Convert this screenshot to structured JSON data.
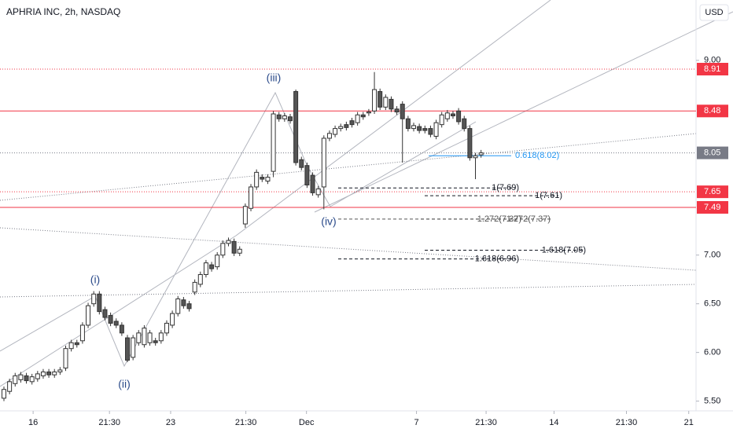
{
  "chart_data": {
    "type": "candlestick",
    "title": "APHRIA INC, 2h, NASDAQ",
    "currency": "USD",
    "x": [
      0,
      1,
      2,
      3,
      4,
      5,
      6,
      7,
      8,
      9,
      10,
      11,
      12,
      13,
      14,
      15,
      16,
      17,
      18,
      19,
      20,
      21,
      22,
      23,
      24,
      25,
      26,
      27,
      28,
      29,
      30,
      31,
      32,
      33,
      34,
      35,
      36,
      37,
      38,
      39,
      40,
      41,
      42,
      43,
      44,
      45,
      46,
      47,
      48,
      49,
      50,
      51,
      52,
      53,
      54,
      55,
      56,
      57,
      58,
      59,
      60,
      61,
      62,
      63,
      64,
      65,
      66,
      67,
      68,
      69,
      70,
      71,
      72,
      73,
      74,
      75,
      76,
      77,
      78,
      79,
      80,
      81,
      82,
      83,
      84,
      85
    ],
    "open": [
      5.53,
      5.6,
      5.68,
      5.72,
      5.76,
      5.7,
      5.73,
      5.76,
      5.8,
      5.77,
      5.8,
      5.84,
      6.04,
      6.1,
      6.12,
      6.28,
      6.5,
      6.6,
      6.44,
      6.38,
      6.32,
      6.28,
      6.15,
      5.95,
      6.1,
      6.08,
      6.1,
      6.12,
      6.12,
      6.2,
      6.28,
      6.4,
      6.54,
      6.5,
      6.62,
      6.7,
      6.8,
      6.9,
      6.88,
      7.0,
      7.12,
      7.14,
      7.02,
      7.32,
      7.48,
      7.7,
      7.8,
      7.76,
      7.86,
      8.44,
      8.4,
      8.42,
      8.68,
      7.98,
      7.92,
      7.82,
      7.62,
      7.7,
      8.2,
      8.24,
      8.3,
      8.34,
      8.38,
      8.36,
      8.44,
      8.46,
      8.48,
      8.68,
      8.52,
      8.6,
      8.5,
      8.55,
      8.4,
      8.3,
      8.32,
      8.3,
      8.3,
      8.22,
      8.34,
      8.4,
      8.45,
      8.48,
      8.4,
      8.3,
      8.0,
      8.03
    ],
    "high": [
      5.65,
      5.73,
      5.79,
      5.8,
      5.79,
      5.78,
      5.81,
      5.83,
      5.83,
      5.83,
      5.85,
      6.07,
      6.13,
      6.13,
      6.31,
      6.51,
      6.63,
      6.63,
      6.47,
      6.41,
      6.35,
      6.31,
      6.18,
      6.18,
      6.23,
      6.28,
      6.23,
      6.15,
      6.23,
      6.33,
      6.43,
      6.58,
      6.57,
      6.53,
      6.75,
      6.83,
      6.95,
      6.93,
      7.03,
      7.15,
      7.18,
      7.17,
      7.09,
      7.53,
      7.73,
      7.88,
      7.83,
      7.83,
      8.48,
      8.47,
      8.46,
      8.45,
      8.7,
      8.01,
      7.95,
      7.85,
      7.71,
      8.23,
      8.28,
      8.33,
      8.35,
      8.37,
      8.41,
      8.47,
      8.47,
      8.5,
      8.88,
      8.71,
      8.65,
      8.63,
      8.53,
      8.58,
      8.43,
      8.36,
      8.35,
      8.33,
      8.33,
      8.39,
      8.47,
      8.49,
      8.48,
      8.51,
      8.43,
      8.33,
      8.05,
      8.08
    ],
    "low": [
      5.5,
      5.57,
      5.65,
      5.69,
      5.68,
      5.67,
      5.7,
      5.73,
      5.74,
      5.74,
      5.77,
      5.81,
      6.01,
      6.05,
      6.09,
      6.25,
      6.47,
      6.39,
      6.33,
      6.27,
      6.25,
      6.17,
      5.9,
      5.92,
      6.07,
      6.05,
      6.07,
      6.07,
      6.09,
      6.17,
      6.25,
      6.37,
      6.45,
      6.42,
      6.59,
      6.67,
      6.77,
      6.83,
      6.85,
      6.97,
      7.09,
      6.99,
      6.99,
      7.28,
      7.45,
      7.67,
      7.75,
      7.73,
      7.8,
      8.37,
      8.37,
      8.35,
      7.92,
      7.87,
      7.69,
      7.61,
      7.59,
      7.47,
      8.17,
      8.21,
      8.27,
      8.28,
      8.31,
      8.33,
      8.39,
      8.43,
      8.45,
      8.49,
      8.49,
      8.47,
      8.44,
      7.95,
      8.27,
      8.27,
      8.25,
      8.25,
      8.21,
      8.19,
      8.31,
      8.37,
      8.4,
      8.34,
      8.27,
      7.97,
      7.78,
      8.0
    ],
    "close": [
      5.62,
      5.7,
      5.76,
      5.77,
      5.71,
      5.75,
      5.78,
      5.8,
      5.77,
      5.8,
      5.82,
      6.04,
      6.1,
      6.08,
      6.28,
      6.48,
      6.6,
      6.42,
      6.36,
      6.3,
      6.28,
      6.2,
      5.92,
      6.15,
      6.2,
      6.25,
      6.2,
      6.1,
      6.2,
      6.3,
      6.4,
      6.55,
      6.48,
      6.45,
      6.72,
      6.8,
      6.92,
      6.86,
      7.0,
      7.12,
      7.15,
      7.02,
      7.06,
      7.5,
      7.7,
      7.85,
      7.78,
      7.8,
      8.45,
      8.4,
      8.43,
      8.38,
      7.95,
      7.9,
      7.72,
      7.64,
      7.68,
      8.2,
      8.25,
      8.3,
      8.32,
      8.31,
      8.34,
      8.44,
      8.42,
      8.47,
      8.7,
      8.52,
      8.62,
      8.5,
      8.47,
      8.4,
      8.3,
      8.33,
      8.28,
      8.28,
      8.24,
      8.36,
      8.44,
      8.46,
      8.43,
      8.37,
      8.3,
      8.0,
      8.02,
      8.05
    ],
    "up_color": "#ffffff",
    "down_color": "#555555",
    "xlim": [
      -0.7,
      123.3
    ],
    "xticks": [
      {
        "value": 5.2,
        "label": "16"
      },
      {
        "value": 18.8,
        "label": "21:30"
      },
      {
        "value": 29.7,
        "label": "23"
      },
      {
        "value": 43.1,
        "label": "21:30"
      },
      {
        "value": 53.9,
        "label": "Dec"
      },
      {
        "value": 73.5,
        "label": "7"
      },
      {
        "value": 85.9,
        "label": "21:30"
      },
      {
        "value": 98.0,
        "label": "14"
      },
      {
        "value": 110.9,
        "label": "21:30"
      },
      {
        "value": 122.0,
        "label": "21"
      }
    ],
    "ylim": [
      5.4,
      9.62
    ],
    "yticks": [
      {
        "value": 9,
        "label": "9.00"
      },
      {
        "value": 7,
        "label": "7.00"
      },
      {
        "value": 6.5,
        "label": "6.50"
      },
      {
        "value": 6,
        "label": "6.00"
      },
      {
        "value": 5.5,
        "label": "5.50"
      }
    ],
    "levels": [
      {
        "value": 8.91,
        "style": "dotted",
        "color": "#f23645"
      },
      {
        "value": 8.48,
        "style": "solid",
        "color": "#f23645"
      },
      {
        "value": 8.05,
        "style": "dotted",
        "color": "#787b86"
      },
      {
        "value": 7.65,
        "style": "dotted",
        "color": "#f23645"
      },
      {
        "value": 7.49,
        "style": "solid",
        "color": "#f23645"
      }
    ],
    "fib_levels": [
      {
        "label": "0.618(8.02)",
        "value": 8.02
      },
      {
        "label": "1(7.69)",
        "value": 7.69
      },
      {
        "label": "1(7.61)",
        "value": 7.61
      },
      {
        "label": "1.272(7.37)",
        "value": 7.37
      },
      {
        "label": "1.272(7.37)",
        "value": 7.37
      },
      {
        "label": "1.618(7.05)",
        "value": 7.05
      },
      {
        "label": "1.618(6.96)",
        "value": 6.96
      }
    ],
    "wave_labels": [
      "(i)",
      "(ii)",
      "(iii)",
      "(iv)"
    ]
  }
}
